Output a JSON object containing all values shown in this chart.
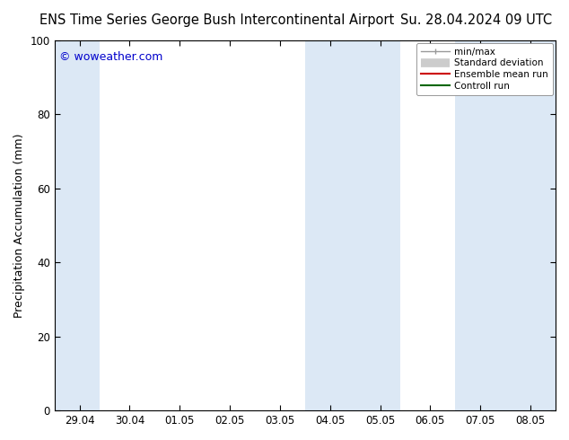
{
  "title_left": "ENS Time Series George Bush Intercontinental Airport",
  "title_right": "Su. 28.04.2024 09 UTC",
  "ylabel": "Precipitation Accumulation (mm)",
  "watermark": "© woweather.com",
  "watermark_color": "#0000cc",
  "ylim": [
    0,
    100
  ],
  "yticks": [
    0,
    20,
    40,
    60,
    80,
    100
  ],
  "x_tick_labels": [
    "29.04",
    "30.04",
    "01.05",
    "02.05",
    "03.05",
    "04.05",
    "05.05",
    "06.05",
    "07.05",
    "08.05"
  ],
  "x_tick_positions": [
    0,
    1,
    2,
    3,
    4,
    5,
    6,
    7,
    8,
    9
  ],
  "xlim_min": -0.5,
  "xlim_max": 9.5,
  "shaded_bands": [
    {
      "x_start": -0.5,
      "x_end": 0.4,
      "color": "#dce8f5"
    },
    {
      "x_start": 4.5,
      "x_end": 6.4,
      "color": "#dce8f5"
    },
    {
      "x_start": 7.5,
      "x_end": 9.5,
      "color": "#dce8f5"
    }
  ],
  "bg_color": "#ffffff",
  "plot_bg_color": "#ffffff",
  "title_fontsize": 10.5,
  "tick_label_fontsize": 8.5,
  "ylabel_fontsize": 9,
  "watermark_fontsize": 9
}
